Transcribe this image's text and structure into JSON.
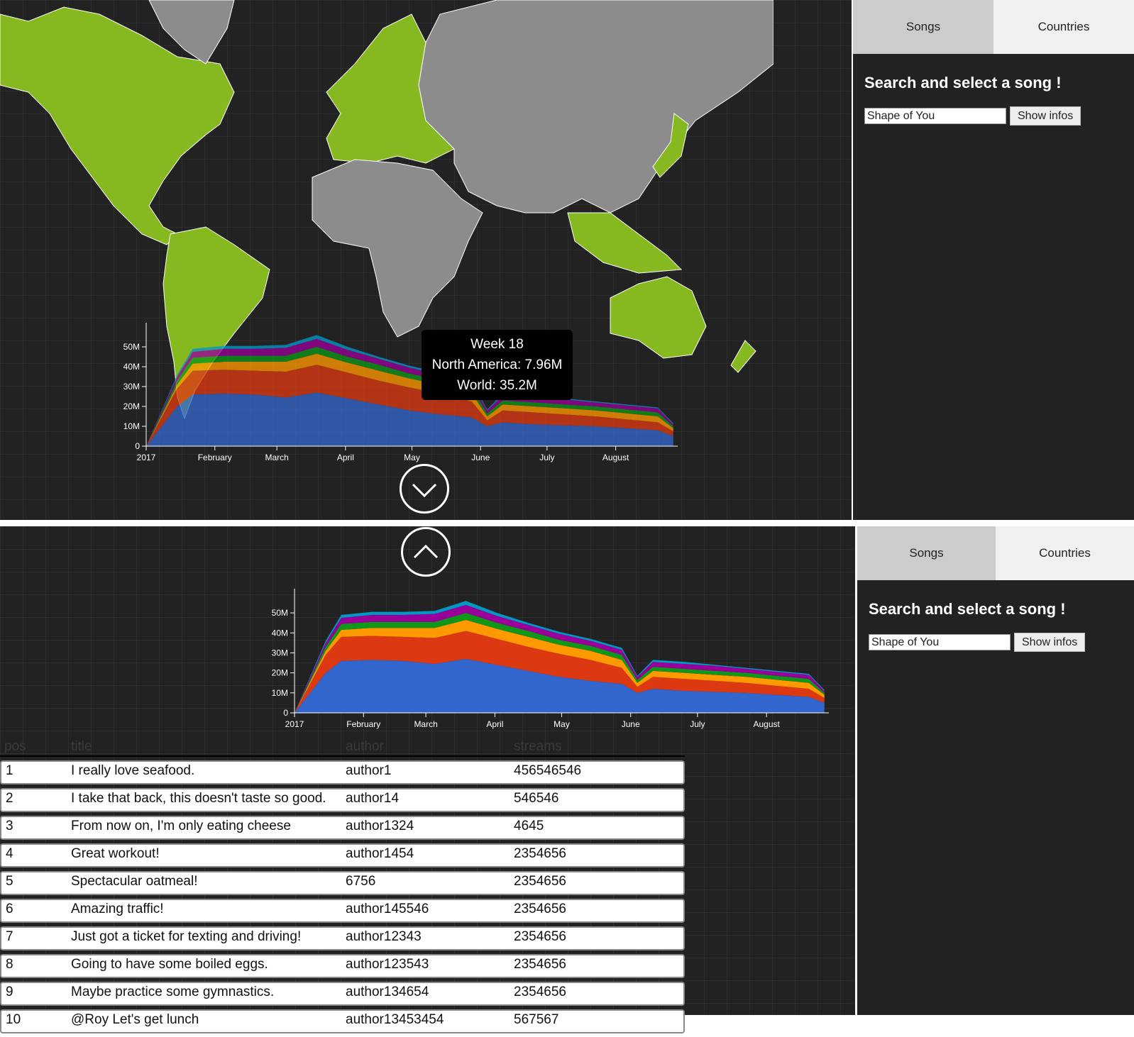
{
  "tabs": {
    "songs": "Songs",
    "countries": "Countries"
  },
  "sidebar": {
    "title": "Search and select a song !",
    "search_value": "Shape of You",
    "show_button": "Show infos"
  },
  "tooltip": {
    "week": "Week 18",
    "region": "North America: 7.96M",
    "world": "World: 35.2M"
  },
  "colors": {
    "map_highlight": "#86b820",
    "map_other": "#8c8c8c",
    "background": "#222222"
  },
  "chart_data": {
    "type": "area",
    "stacked": true,
    "title": "",
    "xlabel": "",
    "ylabel": "",
    "ylim": [
      0,
      50000000
    ],
    "y_ticks": [
      "0",
      "10M",
      "20M",
      "30M",
      "40M",
      "50M"
    ],
    "x_ticks": [
      "2017",
      "February",
      "March",
      "April",
      "May",
      "June",
      "July",
      "August"
    ],
    "x": [
      "2017-01-01",
      "2017-01-15",
      "2017-01-22",
      "2017-02-05",
      "2017-02-19",
      "2017-03-05",
      "2017-03-19",
      "2017-04-02",
      "2017-04-16",
      "2017-04-30",
      "2017-05-14",
      "2017-05-28",
      "2017-06-04",
      "2017-06-11",
      "2017-06-25",
      "2017-07-09",
      "2017-07-23",
      "2017-08-06",
      "2017-08-20",
      "2017-08-27"
    ],
    "series": [
      {
        "color": "#3366cc",
        "values": [
          0,
          20,
          26,
          26.5,
          26,
          24.5,
          27,
          24,
          21,
          18,
          16,
          14.5,
          10,
          12,
          11,
          10.5,
          10,
          9,
          8,
          5
        ]
      },
      {
        "color": "#dc3912",
        "values": [
          0,
          9,
          12,
          12,
          12,
          13,
          14,
          13,
          12,
          11.5,
          10.5,
          8,
          3,
          6,
          6,
          5.5,
          5,
          4.5,
          4,
          2.5
        ]
      },
      {
        "color": "#ff9900",
        "values": [
          0,
          2,
          3.5,
          4,
          4.5,
          5,
          5.5,
          5,
          5,
          4.5,
          4.5,
          4,
          2,
          3,
          3,
          3,
          3,
          3,
          3,
          1.5
        ]
      },
      {
        "color": "#109618",
        "values": [
          0,
          2,
          3,
          3,
          3,
          3,
          3.5,
          3,
          3,
          2.5,
          2.5,
          2.5,
          1.5,
          2,
          2,
          2,
          2,
          2,
          2,
          1
        ]
      },
      {
        "color": "#990099",
        "values": [
          0,
          2,
          3,
          3.5,
          3.5,
          4,
          4,
          3.5,
          3,
          3,
          2.5,
          2.5,
          1.5,
          2.5,
          2.5,
          2.5,
          2,
          2,
          2,
          1
        ]
      },
      {
        "color": "#0099c6",
        "values": [
          0,
          1,
          1.5,
          1.5,
          1.5,
          1.5,
          2,
          1.5,
          1,
          1,
          1,
          1,
          0.5,
          1,
          1,
          0.5,
          0.5,
          0.5,
          0.5,
          0.5
        ]
      }
    ]
  },
  "table": {
    "headers": [
      "pos",
      "title",
      "author",
      "streams"
    ],
    "rows": [
      [
        "1",
        "I really love seafood.",
        "author1",
        "456546546"
      ],
      [
        "2",
        "I take that back, this doesn't taste so good.",
        "author14",
        "546546"
      ],
      [
        "3",
        "From now on, I'm only eating cheese sandwiches.",
        "author1324",
        "4645"
      ],
      [
        "4",
        "Great workout!",
        "author1454",
        "2354656"
      ],
      [
        "5",
        "Spectacular oatmeal!",
        "6756",
        "2354656"
      ],
      [
        "6",
        "Amazing traffic!",
        "author145546",
        "2354656"
      ],
      [
        "7",
        "Just got a ticket for texting and driving!",
        "author12343",
        "2354656"
      ],
      [
        "8",
        "Going to have some boiled eggs.",
        "author123543",
        "2354656"
      ],
      [
        "9",
        "Maybe practice some gymnastics.",
        "author134654",
        "2354656"
      ],
      [
        "10",
        "@Roy Let's get lunch",
        "author13453454",
        "567567"
      ]
    ]
  }
}
